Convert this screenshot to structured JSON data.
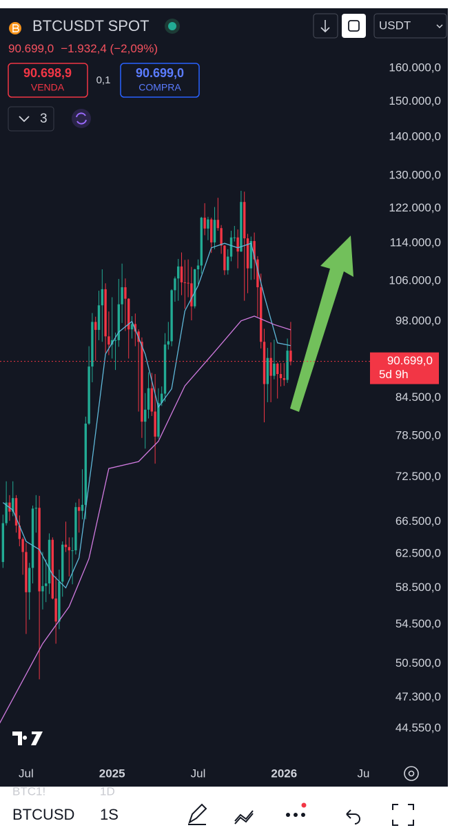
{
  "header": {
    "symbol": "BTCUSDT SPOT",
    "price": "90.699,0",
    "change": "−1.932,4 (−2,09%)",
    "sell": {
      "price": "90.698,9",
      "label": "VENDA"
    },
    "spread": "0,1",
    "buy": {
      "price": "90.699,0",
      "label": "COMPRA"
    },
    "indicator_count": "3",
    "currency": "USDT"
  },
  "chart_data": {
    "type": "candlestick",
    "log_scale": true,
    "up_color": "#22ab94",
    "down_color": "#f23645",
    "x": [
      -7,
      -6,
      -5,
      -4,
      -3,
      -2,
      -1,
      0,
      1,
      2,
      3,
      4,
      5,
      6,
      7,
      8,
      9,
      10,
      11,
      12,
      13,
      14,
      15,
      16,
      17,
      18,
      19,
      20,
      21,
      22,
      23,
      24,
      25,
      26,
      27,
      28,
      29,
      30,
      31,
      32,
      33,
      34,
      35,
      36,
      37,
      38,
      39,
      40,
      41,
      42,
      43,
      44,
      45,
      46,
      47,
      48,
      49,
      50,
      51,
      52,
      53,
      54,
      55,
      56,
      57,
      58,
      59,
      60,
      61,
      62,
      63,
      64,
      65,
      66,
      67,
      68,
      69,
      70,
      71,
      72,
      73,
      74,
      75,
      76,
      77,
      78,
      79,
      80
    ],
    "open": [
      61500,
      66300,
      69000,
      67800,
      69600,
      66000,
      64300,
      62700,
      58000,
      60800,
      68200,
      68300,
      58100,
      58700,
      59000,
      64200,
      57300,
      54800,
      59200,
      63600,
      63300,
      62900,
      62900,
      68400,
      67900,
      68700,
      80400,
      89800,
      97900,
      96400,
      101100,
      104300,
      95200,
      93700,
      94500,
      94500,
      101300,
      104700,
      102400,
      96500,
      97500,
      96100,
      94200,
      80700,
      82600,
      86100,
      82300,
      78400,
      83700,
      85200,
      93700,
      94300,
      104100,
      106500,
      109000,
      105700,
      105600,
      105500,
      100900,
      108400,
      109200,
      119800,
      117300,
      119400,
      114200,
      119300,
      117400,
      113500,
      108200,
      111100,
      115300,
      115300,
      112200,
      123500,
      115100,
      108600,
      114500,
      110500,
      104700,
      94200,
      86800,
      91300,
      88200,
      90300,
      88500,
      87800,
      87500,
      92600
    ],
    "high": [
      67400,
      71900,
      70000,
      71900,
      70000,
      67300,
      64500,
      63800,
      61400,
      68600,
      70000,
      69900,
      62700,
      61800,
      65000,
      64500,
      59800,
      60600,
      64000,
      66500,
      64500,
      64500,
      69000,
      69500,
      73600,
      81500,
      93400,
      99600,
      98900,
      104000,
      108400,
      105500,
      99900,
      102700,
      95900,
      106400,
      109600,
      106500,
      102500,
      99000,
      99500,
      96500,
      95000,
      85300,
      88800,
      88700,
      88500,
      86100,
      86400,
      95800,
      97900,
      104300,
      106900,
      110600,
      112000,
      110400,
      110500,
      108900,
      108500,
      110500,
      120000,
      123200,
      120000,
      119800,
      122300,
      124500,
      118100,
      113600,
      112700,
      116800,
      117900,
      117100,
      126200,
      126000,
      116100,
      115500,
      116400,
      111200,
      107500,
      96600,
      93100,
      94100,
      94600,
      90500,
      90400,
      90400,
      94800,
      97900
    ],
    "low": [
      60800,
      66000,
      66600,
      67200,
      65100,
      63400,
      60000,
      53500,
      55000,
      59000,
      65100,
      49000,
      56100,
      56900,
      57800,
      57200,
      52500,
      54000,
      57500,
      62700,
      59800,
      58900,
      62400,
      65100,
      66800,
      66800,
      80200,
      87100,
      90800,
      94500,
      94200,
      92200,
      91800,
      91200,
      89200,
      93300,
      97700,
      96200,
      91200,
      94800,
      93400,
      82300,
      78200,
      76600,
      81200,
      81600,
      74400,
      78100,
      83200,
      83900,
      92800,
      93400,
      101800,
      102000,
      103100,
      100400,
      102700,
      98200,
      100500,
      105300,
      107500,
      115800,
      114700,
      111900,
      112700,
      116800,
      111700,
      107200,
      107300,
      110100,
      114400,
      108600,
      112100,
      102000,
      103500,
      106200,
      106300,
      98900,
      93000,
      80600,
      83800,
      83800,
      87600,
      84400,
      86400,
      86500,
      87000,
      90000
    ],
    "close": [
      66300,
      69000,
      67800,
      69600,
      66000,
      64300,
      62700,
      58000,
      60800,
      68200,
      68300,
      58100,
      58700,
      59000,
      64200,
      57300,
      54800,
      59200,
      63600,
      63300,
      62900,
      62900,
      68400,
      67900,
      68700,
      80400,
      89800,
      97900,
      96400,
      101100,
      104300,
      95200,
      93700,
      94500,
      94500,
      101300,
      104700,
      102400,
      96500,
      97500,
      96100,
      94200,
      80700,
      82600,
      86100,
      82300,
      78400,
      83700,
      85200,
      93700,
      94300,
      104100,
      106500,
      109000,
      105700,
      105600,
      105500,
      100900,
      108400,
      109200,
      119800,
      117300,
      119400,
      114200,
      119300,
      117400,
      113500,
      108200,
      111100,
      115300,
      115300,
      112200,
      123500,
      115100,
      108600,
      114500,
      110500,
      104700,
      94200,
      86800,
      91300,
      88200,
      90300,
      88500,
      87800,
      87500,
      92600,
      90699
    ],
    "series": [
      {
        "color": "#5fb8d9",
        "x": [
          -7,
          -4,
          0,
          4,
          8,
          12,
          16,
          20,
          24,
          28,
          32,
          36,
          40,
          44,
          48,
          52,
          56,
          60,
          64,
          68,
          72,
          76,
          80
        ],
        "values": [
          69000,
          68000,
          64000,
          63000,
          60000,
          58500,
          62000,
          75000,
          92000,
          96000,
          98000,
          92000,
          83000,
          86000,
          100000,
          105000,
          113000,
          114000,
          113000,
          114000,
          103000,
          94000,
          93500
        ]
      },
      {
        "color": "#d17be0",
        "x": [
          -8,
          5,
          13,
          19,
          25,
          34,
          40,
          48,
          57,
          65,
          69,
          75,
          80
        ],
        "values": [
          45000,
          52500,
          56400,
          61900,
          73700,
          74700,
          77700,
          86500,
          92400,
          98100,
          99000,
          97400,
          96400
        ]
      }
    ],
    "last_price_label": "90.699,0",
    "countdown": "5d 9h",
    "xlim": [
      -7.9,
      104.6
    ],
    "ylim": [
      42100,
      179000
    ],
    "xticks": [
      {
        "value": 0,
        "label": "Jul"
      },
      {
        "value": 26,
        "label": "2025"
      },
      {
        "value": 52,
        "label": "Jul"
      },
      {
        "value": 78,
        "label": "2026"
      },
      {
        "value": 102,
        "label": "Ju"
      }
    ],
    "yticks": [
      {
        "value": 160000,
        "label": "160.000,0"
      },
      {
        "value": 150000,
        "label": "150.000,0"
      },
      {
        "value": 140000,
        "label": "140.000,0"
      },
      {
        "value": 130000,
        "label": "130.000,0"
      },
      {
        "value": 122000,
        "label": "122.000,0"
      },
      {
        "value": 114000,
        "label": "114.000,0"
      },
      {
        "value": 106000,
        "label": "106.000,0"
      },
      {
        "value": 98000,
        "label": "98.000,0"
      },
      {
        "value": 84500,
        "label": "84.500,0"
      },
      {
        "value": 78500,
        "label": "78.500,0"
      },
      {
        "value": 72500,
        "label": "72.500,0"
      },
      {
        "value": 66500,
        "label": "66.500,0"
      },
      {
        "value": 62500,
        "label": "62.500,0"
      },
      {
        "value": 58500,
        "label": "58.500,0"
      },
      {
        "value": 54500,
        "label": "54.500,0"
      },
      {
        "value": 50500,
        "label": "50.500,0"
      },
      {
        "value": 47300,
        "label": "47.300,0"
      },
      {
        "value": 44550,
        "label": "44.550,0"
      }
    ]
  },
  "toolbar": {
    "hidden_symbol": "BTC1!",
    "hidden_interval": "1D",
    "symbol": "BTCUSD",
    "interval": "1S"
  }
}
